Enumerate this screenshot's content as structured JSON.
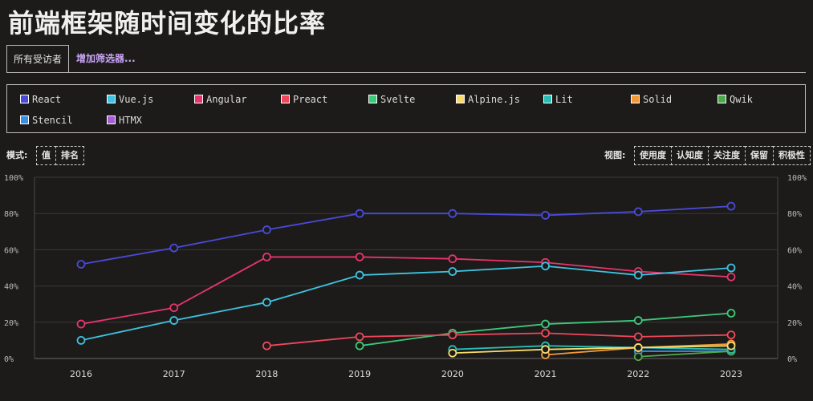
{
  "title": "前端框架随时间变化的比率",
  "filters": {
    "active_tab": "所有受访者",
    "add_filter": "增加筛选器..."
  },
  "controls": {
    "mode_label": "模式:",
    "mode_options": [
      "值",
      "排名"
    ],
    "view_label": "视图:",
    "view_options": [
      "使用度",
      "认知度",
      "关注度",
      "保留",
      "积极性"
    ]
  },
  "chart_data": {
    "type": "line",
    "x": [
      "2016",
      "2017",
      "2018",
      "2019",
      "2020",
      "2021",
      "2022",
      "2023"
    ],
    "y_ticks": [
      "0%",
      "20%",
      "40%",
      "60%",
      "80%",
      "100%"
    ],
    "ylim": [
      0,
      100
    ],
    "grid": true,
    "legend_position": "top",
    "series": [
      {
        "name": "React",
        "color": "#4a4ad9",
        "values": [
          52,
          61,
          71,
          80,
          80,
          79,
          81,
          84
        ]
      },
      {
        "name": "Vue.js",
        "color": "#3ec3e0",
        "values": [
          10,
          21,
          31,
          46,
          48,
          51,
          46,
          50
        ]
      },
      {
        "name": "Angular",
        "color": "#e8346c",
        "values": [
          19,
          28,
          56,
          56,
          55,
          53,
          48,
          45
        ]
      },
      {
        "name": "Preact",
        "color": "#f0475a",
        "values": [
          null,
          null,
          7,
          12,
          13,
          14,
          12,
          13
        ]
      },
      {
        "name": "Svelte",
        "color": "#3dc97a",
        "values": [
          null,
          null,
          null,
          7,
          14,
          19,
          21,
          25
        ]
      },
      {
        "name": "Alpine.js",
        "color": "#f7dc6f",
        "values": [
          null,
          null,
          null,
          null,
          3,
          5,
          6,
          7
        ]
      },
      {
        "name": "Lit",
        "color": "#2bbfb3",
        "values": [
          null,
          null,
          null,
          null,
          5,
          7,
          6,
          5
        ]
      },
      {
        "name": "Solid",
        "color": "#f29a3a",
        "values": [
          null,
          null,
          null,
          null,
          null,
          2,
          6,
          8
        ]
      },
      {
        "name": "Qwik",
        "color": "#4ea84e",
        "values": [
          null,
          null,
          null,
          null,
          null,
          null,
          1,
          4
        ]
      },
      {
        "name": "Stencil",
        "color": "#3a8ee6",
        "values": [
          null,
          null,
          null,
          null,
          null,
          null,
          4,
          4
        ]
      },
      {
        "name": "HTMX",
        "color": "#a55fd6",
        "values": [
          null,
          null,
          null,
          null,
          null,
          null,
          null,
          null
        ]
      }
    ]
  }
}
